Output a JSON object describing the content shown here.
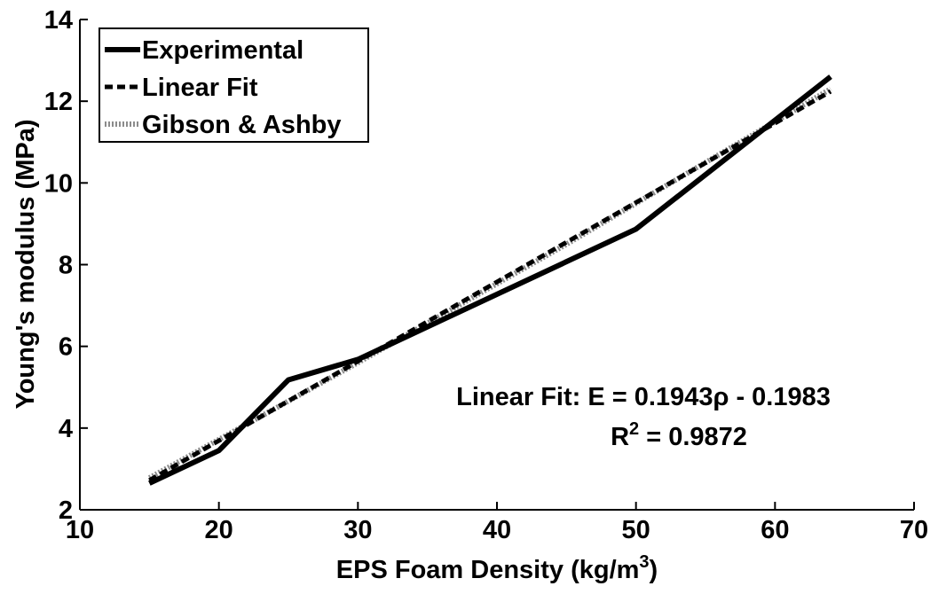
{
  "chart_data": {
    "type": "line",
    "xlabel": [
      "EPS Foam Density (kg/m",
      "3",
      ")"
    ],
    "ylabel": "Young's modulus (MPa)",
    "xlim": [
      10,
      70
    ],
    "xticks": [
      10,
      20,
      30,
      40,
      50,
      60,
      70
    ],
    "ylim": [
      2,
      14
    ],
    "yticks": [
      2,
      4,
      6,
      8,
      10,
      12,
      14
    ],
    "legend": "upper left",
    "series": [
      {
        "name": "Experimental",
        "color": "#000000",
        "style": "solid",
        "x": [
          15,
          20,
          25,
          30,
          50,
          64
        ],
        "values": [
          2.65,
          3.45,
          5.18,
          5.68,
          8.87,
          12.6
        ]
      },
      {
        "name": "Linear Fit",
        "color": "#000000",
        "style": "dashed",
        "x": [
          15,
          64
        ],
        "values": [
          2.72,
          12.24
        ]
      },
      {
        "name": "Gibson & Ashby",
        "color": "#8c8c8c",
        "style": "dotted",
        "x": [
          15,
          30,
          45,
          64
        ],
        "values": [
          2.78,
          5.6,
          8.5,
          12.3
        ]
      }
    ],
    "annotations": [
      [
        "Linear Fit: E = 0.1943ρ - 0.1983"
      ],
      [
        "R",
        "2",
        " = 0.9872"
      ]
    ]
  }
}
